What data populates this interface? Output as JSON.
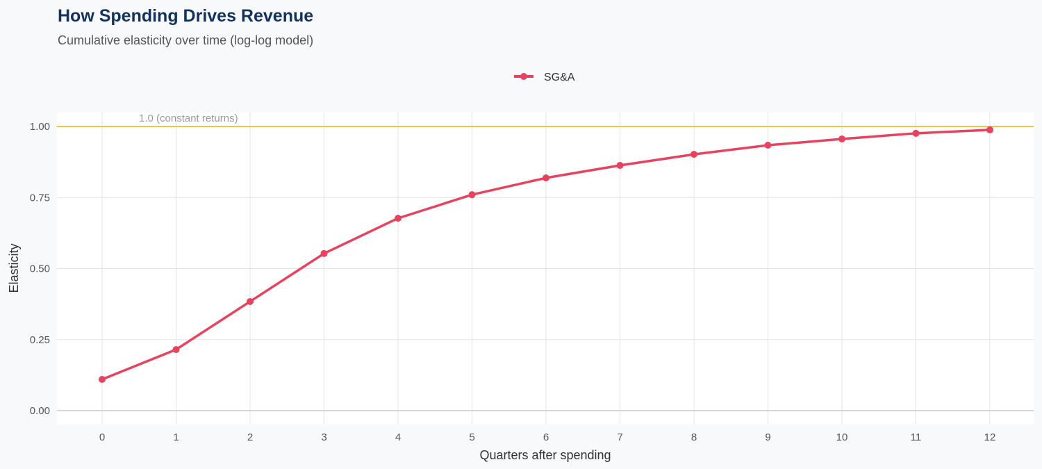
{
  "chart_data": {
    "type": "line",
    "title": "How Spending Drives Revenue",
    "subtitle": "Cumulative elasticity over time (log-log model)",
    "xlabel": "Quarters after spending",
    "ylabel": "Elasticity",
    "x": [
      0,
      1,
      2,
      3,
      4,
      5,
      6,
      7,
      8,
      9,
      10,
      11,
      12
    ],
    "xticks": [
      "0",
      "1",
      "2",
      "3",
      "4",
      "5",
      "6",
      "7",
      "8",
      "9",
      "10",
      "11",
      "12"
    ],
    "yticks": [
      "0.00",
      "0.25",
      "0.50",
      "0.75",
      "1.00"
    ],
    "ylim": [
      -0.05,
      1.05
    ],
    "xlim": [
      -0.6,
      12.6
    ],
    "grid": true,
    "legend_position": "top",
    "series": [
      {
        "name": "SG&A",
        "color": "#e8435e",
        "values": [
          0.11,
          0.215,
          0.384,
          0.553,
          0.677,
          0.76,
          0.819,
          0.863,
          0.902,
          0.934,
          0.956,
          0.976,
          0.988
        ]
      }
    ],
    "reference_line": {
      "y": 1.0,
      "label": "1.0 (constant returns)",
      "color": "#f2c14e"
    }
  }
}
